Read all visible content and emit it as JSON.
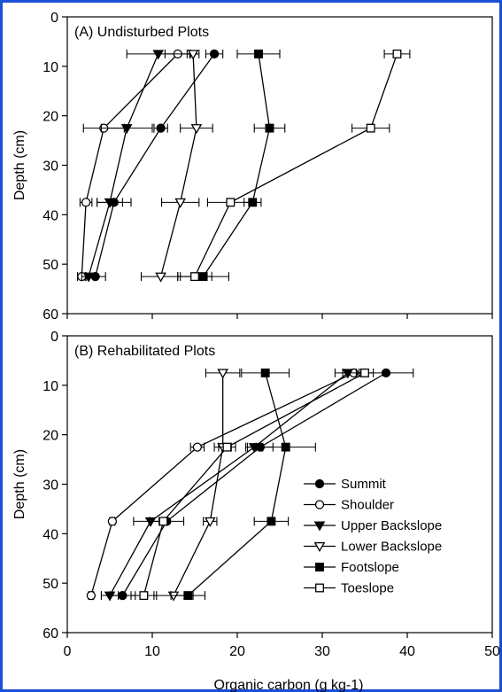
{
  "chart_data": [
    {
      "type": "line",
      "title": "(A) Undisturbed Plots",
      "xlabel": "",
      "ylabel": "Depth (cm)",
      "xlim": [
        0,
        50
      ],
      "ylim": [
        60,
        0
      ],
      "y_inverted": true,
      "xticks": [],
      "yticks": [
        "0",
        "10",
        "20",
        "30",
        "40",
        "50",
        "60"
      ],
      "depths": [
        7.5,
        22.5,
        37.5,
        52.5
      ],
      "series": [
        {
          "name": "Summit",
          "marker": "circle-filled",
          "x": [
            17.3,
            11.0,
            5.5,
            3.3
          ],
          "err": [
            1.0,
            0.8,
            2.0,
            1.2
          ]
        },
        {
          "name": "Shoulder",
          "marker": "circle-open",
          "x": [
            13.0,
            4.3,
            2.2,
            1.7
          ],
          "err": [
            1.5,
            2.4,
            0.7,
            0.5
          ]
        },
        {
          "name": "Upper Backslope",
          "marker": "triangle-down-filled",
          "x": [
            10.7,
            7.0,
            5.0,
            2.5
          ],
          "err": [
            3.7,
            3.0,
            1.5,
            0.8
          ]
        },
        {
          "name": "Lower Backslope",
          "marker": "triangle-down-open",
          "x": [
            14.8,
            15.2,
            13.3,
            11.0
          ],
          "err": [
            0.7,
            1.9,
            2.2,
            2.3
          ]
        },
        {
          "name": "Footslope",
          "marker": "square-filled",
          "x": [
            22.5,
            23.8,
            21.8,
            16.0
          ],
          "err": [
            2.5,
            1.8,
            1.0,
            3.0
          ]
        },
        {
          "name": "Toeslope",
          "marker": "square-open",
          "x": [
            38.8,
            35.7,
            19.2,
            15.0
          ],
          "err": [
            1.5,
            2.2,
            2.7,
            2.0
          ]
        }
      ]
    },
    {
      "type": "line",
      "title": "(B) Rehabilitated Plots",
      "xlabel": "Organic carbon (g kg-1)",
      "ylabel": "Depth (cm)",
      "xlim": [
        0,
        50
      ],
      "ylim": [
        60,
        0
      ],
      "y_inverted": true,
      "xticks": [
        "0",
        "10",
        "20",
        "30",
        "40",
        "50"
      ],
      "yticks": [
        "0",
        "10",
        "20",
        "30",
        "40",
        "50",
        "60"
      ],
      "depths": [
        7.5,
        22.5,
        37.5,
        52.5
      ],
      "series": [
        {
          "name": "Summit",
          "marker": "circle-filled",
          "x": [
            37.5,
            22.7,
            11.7,
            6.5
          ],
          "err": [
            3.2,
            1.5,
            2.0,
            1.5
          ]
        },
        {
          "name": "Shoulder",
          "marker": "circle-open",
          "x": [
            33.7,
            15.3,
            5.3,
            2.8
          ],
          "err": [
            1.3,
            0.8,
            0.3,
            0.3
          ]
        },
        {
          "name": "Upper Backslope",
          "marker": "triangle-down-filled",
          "x": [
            33.0,
            22.0,
            9.8,
            5.0
          ],
          "err": [
            1.5,
            1.0,
            2.0,
            1.0
          ]
        },
        {
          "name": "Lower Backslope",
          "marker": "triangle-down-open",
          "x": [
            18.3,
            18.3,
            16.8,
            12.5
          ],
          "err": [
            2.0,
            1.0,
            0.8,
            2.3
          ]
        },
        {
          "name": "Footslope",
          "marker": "square-filled",
          "x": [
            23.3,
            25.7,
            24.0,
            14.2
          ],
          "err": [
            2.8,
            3.5,
            2.0,
            2.0
          ]
        },
        {
          "name": "Toeslope",
          "marker": "square-open",
          "x": [
            35.0,
            18.8,
            11.3,
            9.0
          ],
          "err": [
            1.0,
            1.0,
            0.5,
            1.5
          ]
        }
      ]
    }
  ],
  "legend": {
    "placement": "lower-right of panel B",
    "items": [
      "Summit",
      "Shoulder",
      "Upper Backslope",
      "Lower Backslope",
      "Footslope",
      "Toeslope"
    ]
  },
  "frame_color": "#1a4fd6",
  "series_color": "#000000"
}
